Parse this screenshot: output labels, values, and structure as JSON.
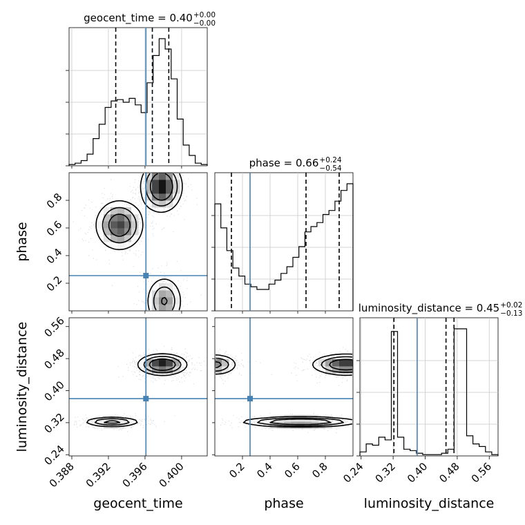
{
  "chart_data": {
    "type": "corner",
    "parameters": [
      "geocent_time",
      "phase",
      "luminosity_distance"
    ],
    "truth": {
      "geocent_time": 0.3961,
      "phase": 0.255,
      "luminosity_distance": 0.38
    },
    "ranges": {
      "geocent_time": [
        0.3877,
        0.4028
      ],
      "phase": [
        0.0,
        1.0
      ],
      "luminosity_distance": [
        0.237,
        0.582
      ]
    },
    "titles": [
      {
        "param": "geocent_time",
        "name": "geocent_time",
        "median": "0.40",
        "plus": "+0.00",
        "minus": "−0.00",
        "quantiles": [
          0.3928,
          0.3968,
          0.3986
        ]
      },
      {
        "param": "phase",
        "name": "phase",
        "median": "0.66",
        "plus": "+0.24",
        "minus": "−0.54",
        "quantiles": [
          0.12,
          0.66,
          0.9
        ]
      },
      {
        "param": "luminosity_distance",
        "name": "luminosity_distance",
        "median": "0.45",
        "plus": "+0.02",
        "minus": "−0.13",
        "quantiles": [
          0.322,
          0.452,
          0.472
        ]
      }
    ],
    "ticks": {
      "geocent_time": {
        "values": [
          0.388,
          0.392,
          0.396,
          0.4
        ],
        "labels": [
          "0.388",
          "0.392",
          "0.396",
          "0.400"
        ]
      },
      "phase": {
        "values": [
          0.2,
          0.4,
          0.6,
          0.8
        ],
        "labels": [
          "0.2",
          "0.4",
          "0.6",
          "0.8"
        ]
      },
      "luminosity_distance": {
        "values": [
          0.24,
          0.32,
          0.4,
          0.48,
          0.56
        ],
        "labels": [
          "0.24",
          "0.32",
          "0.40",
          "0.48",
          "0.56"
        ]
      }
    },
    "axis_labels": {
      "geocent_time": "geocent_time",
      "phase": "phase",
      "luminosity_distance": "luminosity_distance"
    },
    "histograms": {
      "geocent_time": {
        "edges_range": [
          0.3877,
          0.4028
        ],
        "counts": [
          0.01,
          0.02,
          0.04,
          0.09,
          0.21,
          0.32,
          0.45,
          0.5,
          0.51,
          0.49,
          0.52,
          0.47,
          0.41,
          0.64,
          0.85,
          0.98,
          0.9,
          0.67,
          0.36,
          0.16,
          0.08,
          0.02,
          0.01
        ]
      },
      "phase": {
        "edges_range": [
          0.0,
          1.0
        ],
        "counts": [
          0.8,
          0.62,
          0.45,
          0.32,
          0.26,
          0.2,
          0.18,
          0.16,
          0.16,
          0.2,
          0.23,
          0.28,
          0.33,
          0.4,
          0.48,
          0.59,
          0.63,
          0.66,
          0.72,
          0.75,
          0.82,
          0.9,
          0.95
        ]
      },
      "luminosity_distance": {
        "edges_range": [
          0.237,
          0.582
        ],
        "counts": [
          0.03,
          0.09,
          0.08,
          0.14,
          0.12,
          0.93,
          0.14,
          0.05,
          0.04,
          0.02,
          0.01,
          0.01,
          0.01,
          0.02,
          0.05,
          0.95,
          0.95,
          0.15,
          0.09,
          0.07,
          0.03,
          0.01
        ]
      }
    },
    "joint_modes": {
      "phase|geocent_time": [
        {
          "x": 0.3978,
          "y": 0.9,
          "sx": 0.0011,
          "sy": 0.09,
          "w": 0.42
        },
        {
          "x": 0.3932,
          "y": 0.62,
          "sx": 0.0013,
          "sy": 0.09,
          "w": 0.34
        },
        {
          "x": 0.3981,
          "y": 0.07,
          "sx": 0.001,
          "sy": 0.09,
          "w": 0.24
        }
      ],
      "luminosity_distance|geocent_time": [
        {
          "x": 0.3979,
          "y": 0.465,
          "sx": 0.0013,
          "sy": 0.013,
          "w": 0.6
        },
        {
          "x": 0.3924,
          "y": 0.322,
          "sx": 0.0015,
          "sy": 0.006,
          "w": 0.4
        }
      ],
      "luminosity_distance|phase": [
        {
          "x": 0.62,
          "y": 0.322,
          "sx": 0.2,
          "sy": 0.006,
          "w": 0.4
        },
        {
          "x": 0.95,
          "y": 0.465,
          "sx": 0.12,
          "sy": 0.013,
          "w": 0.35
        },
        {
          "x": 0.0,
          "y": 0.465,
          "sx": 0.08,
          "sy": 0.013,
          "w": 0.25
        }
      ]
    },
    "colors": {
      "truth": "#4682b4",
      "hist": "#000000",
      "grid": "#c8c8c8",
      "contour": "#000000"
    }
  }
}
